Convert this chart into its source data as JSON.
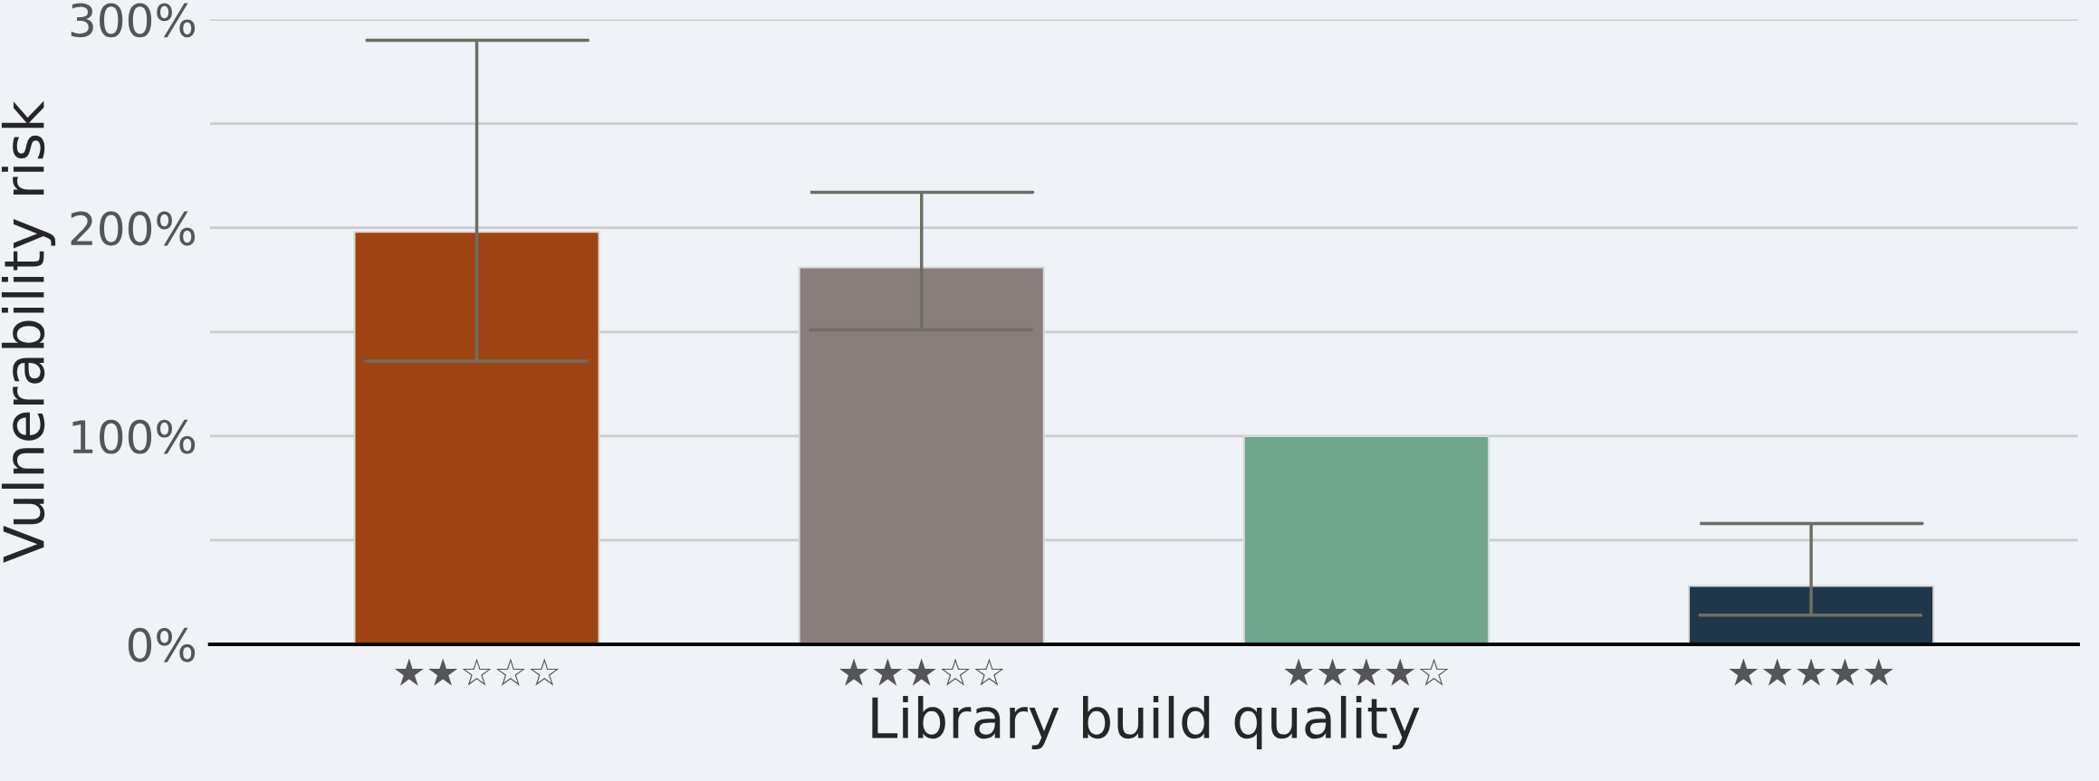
{
  "chart_data": {
    "type": "bar",
    "xlabel": "Library build quality",
    "ylabel": "Vulnerability risk",
    "categories": [
      "★★☆☆☆",
      "★★★☆☆",
      "★★★★☆",
      "★★★★★"
    ],
    "values": [
      198,
      181,
      100,
      28
    ],
    "colors": [
      "#a04313",
      "#8a7e7d",
      "#6fa58c",
      "#20364b"
    ],
    "errors": [
      [
        136,
        290
      ],
      [
        151,
        217
      ],
      null,
      [
        14,
        58
      ]
    ],
    "ylim": [
      0,
      300
    ],
    "yticks": [
      {
        "value": 0,
        "label": "0%"
      },
      {
        "value": 50,
        "label": null
      },
      {
        "value": 100,
        "label": "100%"
      },
      {
        "value": 150,
        "label": null
      },
      {
        "value": 200,
        "label": "200%"
      },
      {
        "value": 250,
        "label": null
      },
      {
        "value": 300,
        "label": "300%"
      }
    ],
    "grid": "y"
  }
}
